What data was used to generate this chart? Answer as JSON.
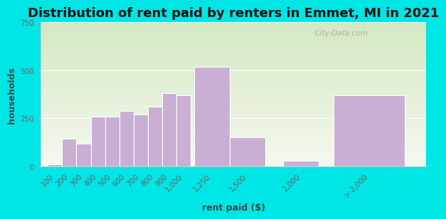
{
  "title": "Distribution of rent paid by renters in Emmet, MI in 2021",
  "xlabel": "rent paid ($)",
  "ylabel": "households",
  "bar_lefts": [
    100,
    200,
    300,
    400,
    500,
    600,
    700,
    800,
    900,
    1000,
    1125,
    1375,
    1750,
    2100
  ],
  "bar_widths": [
    100,
    100,
    100,
    100,
    100,
    100,
    100,
    100,
    100,
    100,
    250,
    250,
    250,
    500
  ],
  "bar_values": [
    10,
    145,
    120,
    260,
    260,
    290,
    270,
    310,
    380,
    370,
    520,
    150,
    30,
    370
  ],
  "bar_color": "#c9afd4",
  "bar_edge_color": "#ffffff",
  "ylim": [
    0,
    750
  ],
  "yticks": [
    0,
    250,
    500,
    750
  ],
  "bg_color_outer": "#00e5e5",
  "bg_color_plot_top": "#d4e8c2",
  "bg_color_plot_bottom": "#f5f8f0",
  "title_fontsize": 13,
  "axis_label_fontsize": 9,
  "tick_fontsize": 7.5,
  "tick_color": "#666666",
  "watermark": "  City-Data.com"
}
